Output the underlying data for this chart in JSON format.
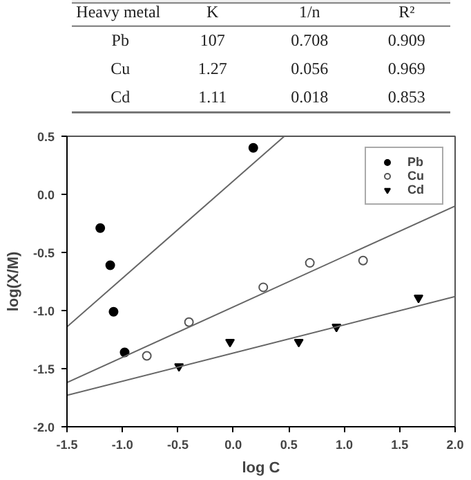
{
  "chart_data": {
    "type": "scatter",
    "xlabel": "log C",
    "ylabel": "log(X/M)",
    "xlim": [
      -1.5,
      2.0
    ],
    "ylim": [
      -2.0,
      0.5
    ],
    "xticks": [
      {
        "value": -1.5,
        "label": "-1.5"
      },
      {
        "value": -1.0,
        "label": "-1.0"
      },
      {
        "value": -0.5,
        "label": "-0.5"
      },
      {
        "value": 0,
        "label": "0.0"
      },
      {
        "value": 0.5,
        "label": "0.5"
      },
      {
        "value": 1.0,
        "label": "1.0"
      },
      {
        "value": 1.5,
        "label": "1.5"
      },
      {
        "value": 2.0,
        "label": "2.0"
      }
    ],
    "yticks": [
      {
        "value": -2.0,
        "label": "-2.0"
      },
      {
        "value": -1.5,
        "label": "-1.5"
      },
      {
        "value": -1.0,
        "label": "-1.0"
      },
      {
        "value": -0.5,
        "label": "-0.5"
      },
      {
        "value": 0,
        "label": "0.0"
      },
      {
        "value": 0.5,
        "label": "0.5"
      }
    ],
    "legend": "top right",
    "grid": false,
    "series": [
      {
        "name": "Pb",
        "color": "#000000",
        "marker": "circle",
        "x": [
          -1.2,
          -1.11,
          -1.08,
          -0.98,
          0.18
        ],
        "values": [
          -0.29,
          -0.61,
          -1.01,
          -1.36,
          0.4
        ]
      },
      {
        "name": "Cu",
        "color": "#555555",
        "marker": "circle_open",
        "x": [
          -0.78,
          -0.4,
          0.27,
          0.69,
          1.17
        ],
        "values": [
          -1.39,
          -1.1,
          -0.8,
          -0.59,
          -0.57
        ]
      },
      {
        "name": "Cd",
        "color": "#000000",
        "marker": "triangle_down",
        "x": [
          -0.49,
          -0.03,
          0.59,
          0.93,
          1.67
        ],
        "values": [
          -1.48,
          -1.27,
          -1.27,
          -1.14,
          -0.89
        ]
      },
      {
        "type": "line",
        "color": "#666666",
        "x": [
          -1.5,
          0.46
        ],
        "values": [
          -1.14,
          0.5
        ]
      },
      {
        "type": "line",
        "color": "#666666",
        "x": [
          -1.5,
          2.0
        ],
        "values": [
          -1.62,
          -0.1
        ]
      },
      {
        "type": "line",
        "color": "#666666",
        "x": [
          -1.5,
          2.0
        ],
        "values": [
          -1.73,
          -0.88
        ]
      }
    ],
    "annotations": [
      "Heavy  metal",
      "K",
      "1/n",
      "R²",
      "Pb",
      "107",
      "0.708",
      "0.909",
      "Cu",
      "1.27",
      "0.056",
      "0.969",
      "Cd",
      "1.11",
      "0.018",
      "0.853"
    ]
  }
}
